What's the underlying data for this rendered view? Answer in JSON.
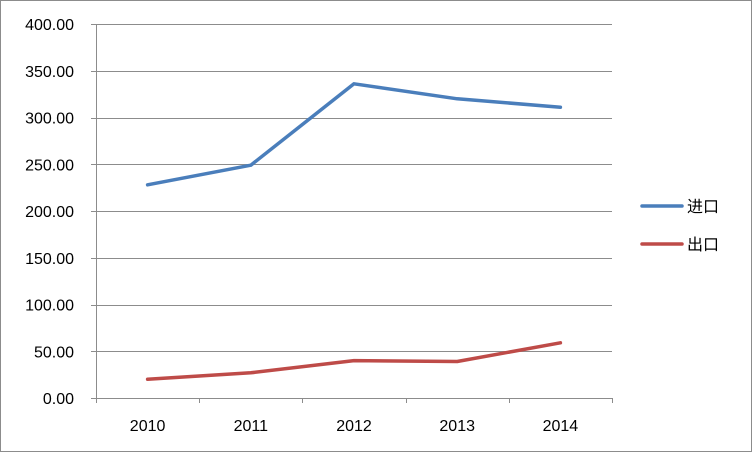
{
  "chart_data": {
    "type": "line",
    "title": "",
    "xlabel": "",
    "ylabel": "",
    "categories": [
      "2010",
      "2011",
      "2012",
      "2013",
      "2014"
    ],
    "ylim": [
      0,
      400
    ],
    "y_ticks": [
      "0.00",
      "50.00",
      "100.00",
      "150.00",
      "200.00",
      "250.00",
      "300.00",
      "350.00",
      "400.00"
    ],
    "y_tick_values": [
      0,
      50,
      100,
      150,
      200,
      250,
      300,
      350,
      400
    ],
    "grid": true,
    "legend_position": "right",
    "series": [
      {
        "name": "进口",
        "color": "#4a7ebb",
        "values": [
          228,
          249,
          336,
          320,
          311
        ]
      },
      {
        "name": "出口",
        "color": "#be4b48",
        "values": [
          20,
          27,
          40,
          39,
          59
        ]
      }
    ]
  },
  "colors": {
    "gridline": "#8c8c8c",
    "axis": "#8c8c8c",
    "border": "#8c8c8c"
  }
}
